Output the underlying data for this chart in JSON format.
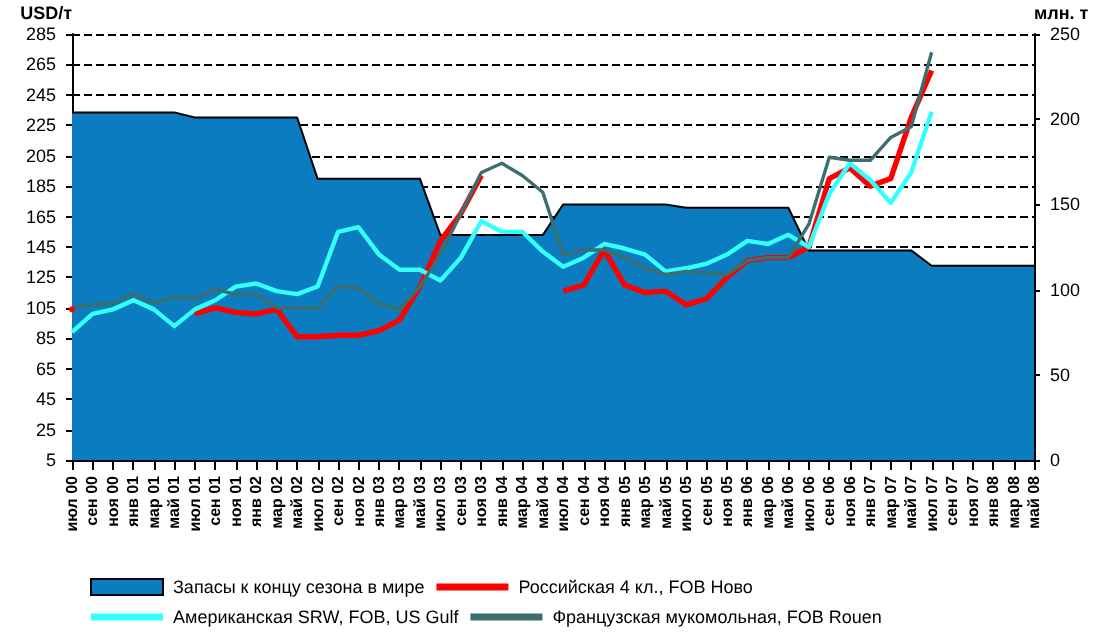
{
  "chart_data": {
    "type": "line",
    "ylabel": "USD/т",
    "y2label": "млн. т",
    "categories": [
      "июл 00",
      "сен 00",
      "ноя 00",
      "янв 01",
      "мар 01",
      "май 01",
      "июл 01",
      "сен 01",
      "ноя 01",
      "янв 02",
      "мар 02",
      "май 02",
      "июл 02",
      "сен 02",
      "ноя 02",
      "янв 03",
      "мар 03",
      "май 03",
      "июл 03",
      "сен 03",
      "ноя 03",
      "янв 04",
      "мар 04",
      "май 04",
      "июл 04",
      "сен 04",
      "ноя 04",
      "янв 05",
      "мар 05",
      "май 05",
      "июл 05",
      "сен 05",
      "ноя 05",
      "янв 06",
      "мар 06",
      "май 06",
      "июл 06",
      "сен 06",
      "ноя 06",
      "янв 07",
      "мар 07",
      "май 07",
      "июл 07",
      "сен 07",
      "ноя 07",
      "янв 08",
      "мар 08",
      "май 08"
    ],
    "series": [
      {
        "name": "Запасы к концу сезона в мире",
        "type": "area",
        "axis": "y2",
        "color": "#0a7cbf",
        "values": [
          204,
          204,
          204,
          204,
          204,
          204,
          201,
          201,
          201,
          201,
          201,
          201,
          165,
          165,
          165,
          165,
          165,
          165,
          132,
          132,
          132,
          132,
          132,
          132,
          150,
          150,
          150,
          150,
          150,
          150,
          148,
          148,
          148,
          148,
          148,
          148,
          123,
          123,
          123,
          123,
          123,
          123,
          114,
          114,
          114,
          114,
          114,
          114
        ]
      },
      {
        "name": "Российская 4 кл., FOB Ново",
        "type": "line",
        "color": "#ff0000",
        "values": [
          104,
          null,
          null,
          null,
          null,
          null,
          101,
          105,
          102,
          101,
          104,
          86,
          86,
          87,
          87,
          90,
          97,
          119,
          149,
          167,
          192,
          null,
          null,
          null,
          116,
          120,
          143,
          120,
          115,
          116,
          107,
          111,
          125,
          136,
          138,
          138,
          145,
          190,
          197,
          185,
          190,
          230,
          261,
          null,
          null,
          null,
          null,
          null
        ]
      },
      {
        "name": "Американская SRW, FOB, US Gulf",
        "type": "line",
        "color": "#33ffff",
        "values": [
          89,
          101,
          104,
          110,
          104,
          93,
          104,
          110,
          119,
          121,
          116,
          114,
          119,
          155,
          158,
          140,
          130,
          130,
          123,
          138,
          162,
          155,
          155,
          142,
          132,
          138,
          147,
          144,
          140,
          129,
          131,
          134,
          140,
          149,
          147,
          153,
          145,
          180,
          200,
          189,
          174,
          194,
          234,
          null,
          null,
          null,
          null,
          null
        ]
      },
      {
        "name": "Французская мукомольная, FOB Rouen",
        "type": "line",
        "color": "#3d6e6e",
        "values": [
          105,
          107,
          108,
          114,
          108,
          112,
          111,
          117,
          114,
          114,
          105,
          105,
          105,
          119,
          118,
          108,
          104,
          119,
          140,
          167,
          194,
          200,
          192,
          181,
          140,
          143,
          143,
          138,
          131,
          127,
          129,
          128,
          127,
          136,
          138,
          138,
          160,
          204,
          202,
          202,
          217,
          224,
          273,
          null,
          null,
          null,
          null,
          null
        ]
      }
    ],
    "ylim": [
      5,
      285
    ],
    "yticks": [
      5,
      25,
      45,
      65,
      85,
      105,
      125,
      145,
      165,
      185,
      205,
      225,
      245,
      265,
      285
    ],
    "y2lim": [
      0,
      250
    ],
    "y2ticks": [
      0,
      50,
      100,
      150,
      200,
      250
    ],
    "grid": "y",
    "line_style": "solid",
    "marker": "none",
    "legend": "bottom"
  }
}
